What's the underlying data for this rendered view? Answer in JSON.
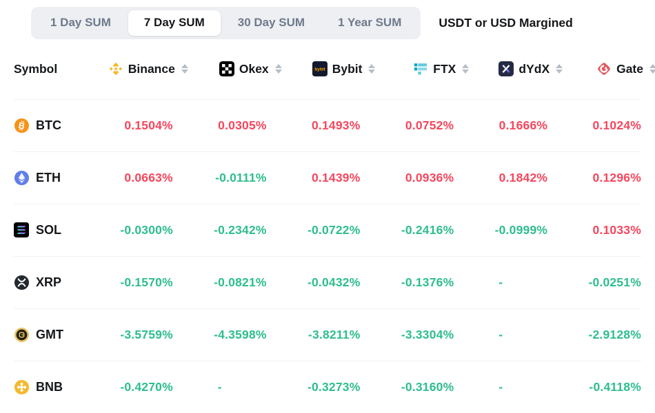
{
  "colors": {
    "positive": "#F6465D",
    "negative": "#2EBD8F",
    "tab_group_bg": "#EDEFF3",
    "row_divider": "#EFF1F3"
  },
  "toolbar": {
    "tabs": [
      {
        "label": "1 Day SUM",
        "active": false
      },
      {
        "label": "7 Day SUM",
        "active": true
      },
      {
        "label": "30 Day SUM",
        "active": false
      },
      {
        "label": "1 Year SUM",
        "active": false
      }
    ],
    "margin_label": "USDT or USD Margined"
  },
  "table": {
    "symbol_header": "Symbol",
    "exchanges": [
      {
        "name": "Binance",
        "icon": "binance-icon",
        "brand_color": "#F3BA2F",
        "sortable": true
      },
      {
        "name": "Okex",
        "icon": "okex-icon",
        "brand_color": "#000000",
        "sortable": true
      },
      {
        "name": "Bybit",
        "icon": "bybit-icon",
        "brand_color": "#15192D",
        "sortable": true
      },
      {
        "name": "FTX",
        "icon": "ftx-icon",
        "brand_color": "#5FCADE",
        "sortable": true
      },
      {
        "name": "dYdX",
        "icon": "dydx-icon",
        "brand_color": "#252A44",
        "sortable": true
      },
      {
        "name": "Gate",
        "icon": "gate-icon",
        "brand_color": "#E25A61",
        "sortable": true
      }
    ],
    "rows": [
      {
        "symbol": "BTC",
        "icon": "btc-icon",
        "values": [
          "0.1504%",
          "0.0305%",
          "0.1493%",
          "0.0752%",
          "0.1666%",
          "0.1024%"
        ]
      },
      {
        "symbol": "ETH",
        "icon": "eth-icon",
        "values": [
          "0.0663%",
          "-0.0111%",
          "0.1439%",
          "0.0936%",
          "0.1842%",
          "0.1296%"
        ]
      },
      {
        "symbol": "SOL",
        "icon": "sol-icon",
        "values": [
          "-0.0300%",
          "-0.2342%",
          "-0.0722%",
          "-0.2416%",
          "-0.0999%",
          "0.1033%"
        ]
      },
      {
        "symbol": "XRP",
        "icon": "xrp-icon",
        "values": [
          "-0.1570%",
          "-0.0821%",
          "-0.0432%",
          "-0.1376%",
          "-",
          "-0.0251%"
        ]
      },
      {
        "symbol": "GMT",
        "icon": "gmt-icon",
        "values": [
          "-3.5759%",
          "-4.3598%",
          "-3.8211%",
          "-3.3304%",
          "-",
          "-2.9128%"
        ]
      },
      {
        "symbol": "BNB",
        "icon": "bnb-icon",
        "values": [
          "-0.4270%",
          "-",
          "-0.3273%",
          "-0.3160%",
          "-",
          "-0.4118%"
        ]
      }
    ]
  }
}
